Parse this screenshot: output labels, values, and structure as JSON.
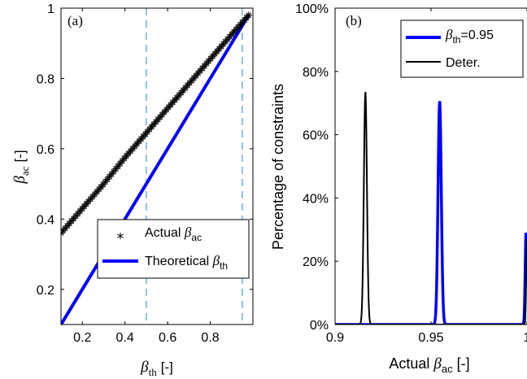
{
  "chart_data": [
    {
      "type": "line",
      "panel_label": "(a)",
      "xlabel": {
        "sym": "β",
        "sub": "th",
        "unit": "[-]"
      },
      "ylabel": {
        "sym": "β",
        "sub": "ac",
        "unit": "[-]"
      },
      "xlim": [
        0.1,
        1.0
      ],
      "ylim": [
        0.1,
        1.0
      ],
      "xticks": [
        0.2,
        0.4,
        0.6,
        0.8
      ],
      "xtick_labels": [
        "0.2",
        "0.4",
        "0.6",
        "0.8"
      ],
      "yticks": [
        0.2,
        0.4,
        0.6,
        0.8,
        1.0
      ],
      "ytick_labels": [
        "0.2",
        "0.4",
        "0.6",
        "0.8",
        "1"
      ],
      "vlines": [
        0.5,
        0.95
      ],
      "series": [
        {
          "name": "Actual",
          "name_sym": "β",
          "name_sub": "ac",
          "marker": "*",
          "color": "#000000",
          "x": [
            0.1,
            0.2,
            0.3,
            0.4,
            0.5,
            0.6,
            0.7,
            0.8,
            0.9,
            0.98
          ],
          "y": [
            0.36,
            0.43,
            0.5,
            0.575,
            0.645,
            0.715,
            0.785,
            0.855,
            0.925,
            0.98
          ]
        },
        {
          "name": "Theoretical",
          "name_sym": "β",
          "name_sub": "th",
          "color": "#0000ff",
          "x": [
            0.1,
            0.98
          ],
          "y": [
            0.1,
            0.98
          ]
        }
      ],
      "legend": "bottom-right",
      "grid": false
    },
    {
      "type": "line",
      "panel_label": "(b)",
      "xlabel": {
        "pre": "Actual ",
        "sym": "β",
        "sub": "ac",
        "unit": "[-]"
      },
      "ylabel": "Percentage of constraints",
      "xlim": [
        0.9,
        1.0
      ],
      "ylim": [
        0,
        100
      ],
      "xticks": [
        0.9,
        0.95,
        1.0
      ],
      "xtick_labels": [
        "0.9",
        "0.95",
        "1"
      ],
      "yticks": [
        0,
        20,
        40,
        60,
        80,
        100
      ],
      "ytick_labels": [
        "0%",
        "20%",
        "40%",
        "60%",
        "80%",
        "100%"
      ],
      "series": [
        {
          "name_sym": "β",
          "name_sub": "th",
          "name_suffix": "=0.95",
          "color": "#0000ff",
          "peaks": [
            {
              "center": 0.9545,
              "height": 70.5,
              "sigma": 0.00085
            },
            {
              "center": 0.9995,
              "height": 29.0,
              "sigma": 0.00045
            }
          ]
        },
        {
          "name": "Deter.",
          "color": "#000000",
          "peaks": [
            {
              "center": 0.9158,
              "height": 73.5,
              "sigma": 0.0008
            },
            {
              "center": 1.0,
              "height": 27.0,
              "sigma": 0.0004
            }
          ]
        }
      ],
      "legend": "top-right",
      "grid": false
    }
  ]
}
